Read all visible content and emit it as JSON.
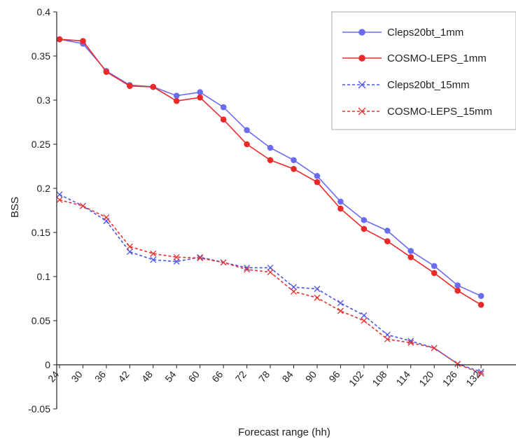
{
  "chart_data": {
    "type": "line",
    "title": "",
    "xlabel": "Forecast range (hh)",
    "ylabel": "BSS",
    "categories": [
      "24",
      "30",
      "36",
      "42",
      "48",
      "54",
      "60",
      "66",
      "72",
      "78",
      "84",
      "90",
      "96",
      "102",
      "108",
      "114",
      "120",
      "126",
      "132"
    ],
    "ylim": [
      -0.05,
      0.4
    ],
    "yticks": [
      "0.4",
      "0.35",
      "0.3",
      "0.25",
      "0.2",
      "0.15",
      "0.1",
      "0.05",
      "0",
      "-0.05"
    ],
    "grid": false,
    "legend_position": "top-right",
    "series": [
      {
        "name": "Cleps20bt_1mm",
        "color": "#6a6cf0",
        "dash": "solid",
        "marker": "circle",
        "values": [
          0.369,
          0.364,
          0.333,
          0.317,
          0.315,
          0.305,
          0.309,
          0.292,
          0.266,
          0.246,
          0.232,
          0.214,
          0.185,
          0.164,
          0.152,
          0.129,
          0.112,
          0.09,
          0.078
        ]
      },
      {
        "name": "COSMO-LEPS_1mm",
        "color": "#ea2a2a",
        "dash": "solid",
        "marker": "circle",
        "values": [
          0.369,
          0.367,
          0.332,
          0.316,
          0.315,
          0.299,
          0.303,
          0.278,
          0.25,
          0.232,
          0.222,
          0.207,
          0.177,
          0.154,
          0.14,
          0.122,
          0.104,
          0.084,
          0.068
        ]
      },
      {
        "name": "Cleps20bt_15mm",
        "color": "#4a55e6",
        "dash": "dashed",
        "marker": "x",
        "values": [
          0.193,
          0.18,
          0.163,
          0.128,
          0.119,
          0.117,
          0.122,
          0.116,
          0.11,
          0.11,
          0.088,
          0.086,
          0.07,
          0.056,
          0.034,
          0.027,
          0.019,
          0.001,
          -0.008
        ]
      },
      {
        "name": "COSMO-LEPS_15mm",
        "color": "#e5322c",
        "dash": "dashed",
        "marker": "x",
        "values": [
          0.187,
          0.18,
          0.167,
          0.134,
          0.126,
          0.122,
          0.121,
          0.116,
          0.108,
          0.105,
          0.083,
          0.076,
          0.061,
          0.05,
          0.029,
          0.025,
          0.019,
          0.001,
          -0.01
        ]
      }
    ]
  }
}
